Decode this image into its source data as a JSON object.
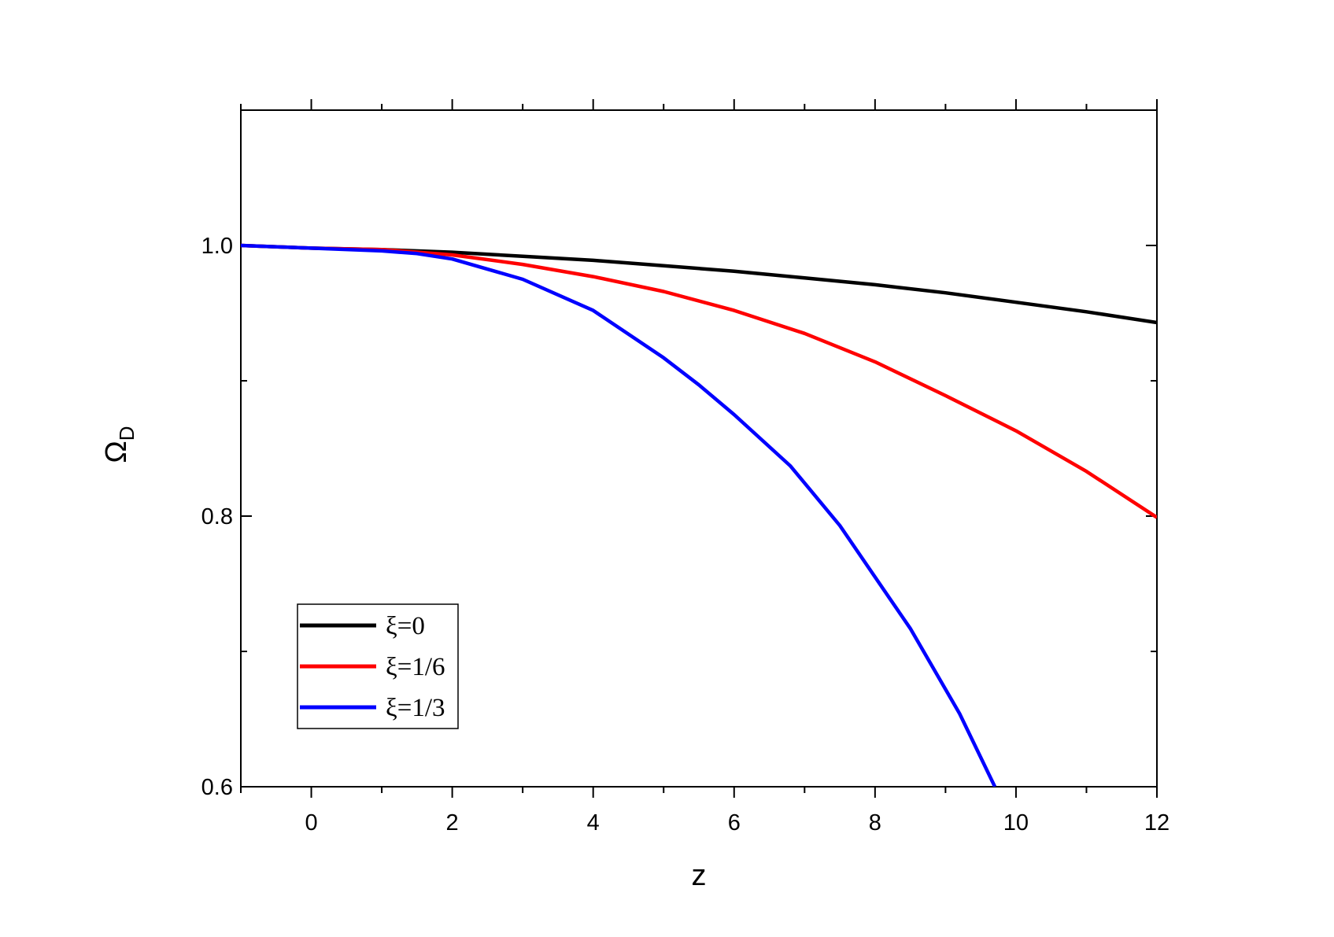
{
  "chart_data": {
    "type": "line",
    "xlabel": "z",
    "ylabel": "Ω",
    "ylabel_subscript": "D",
    "xlim": [
      -1,
      12
    ],
    "ylim": [
      0.6,
      1.1
    ],
    "xticks": [
      0,
      2,
      4,
      6,
      8,
      10,
      12
    ],
    "xtick_labels": [
      "0",
      "2",
      "4",
      "6",
      "8",
      "10",
      "12"
    ],
    "yticks": [
      0.6,
      0.8,
      1.0
    ],
    "ytick_labels": [
      "0.6",
      "0.8",
      "1.0"
    ],
    "grid": false,
    "legend_position": "bottom-left",
    "series": [
      {
        "name": "ξ=0",
        "color": "#000000",
        "x": [
          -1,
          0,
          1,
          2,
          3,
          4,
          5,
          6,
          7,
          8,
          9,
          10,
          11,
          12
        ],
        "y": [
          1.0,
          0.998,
          0.997,
          0.995,
          0.992,
          0.989,
          0.985,
          0.981,
          0.976,
          0.971,
          0.965,
          0.958,
          0.951,
          0.943
        ]
      },
      {
        "name": "ξ=1/6",
        "color": "#ff0000",
        "x": [
          -1,
          0,
          1,
          2,
          3,
          4,
          5,
          6,
          7,
          8,
          9,
          10,
          11,
          12
        ],
        "y": [
          1.0,
          0.998,
          0.997,
          0.993,
          0.986,
          0.977,
          0.966,
          0.952,
          0.935,
          0.914,
          0.889,
          0.863,
          0.833,
          0.799
        ]
      },
      {
        "name": "ξ=1/3",
        "color": "#0000ff",
        "x": [
          -1,
          0,
          1,
          1.5,
          2,
          3,
          4,
          5,
          5.5,
          6,
          6.8,
          7.5,
          8,
          8.5,
          9.2,
          9.7
        ],
        "y": [
          1.0,
          0.998,
          0.996,
          0.994,
          0.99,
          0.975,
          0.952,
          0.917,
          0.897,
          0.875,
          0.837,
          0.793,
          0.755,
          0.717,
          0.654,
          0.6
        ]
      }
    ]
  }
}
